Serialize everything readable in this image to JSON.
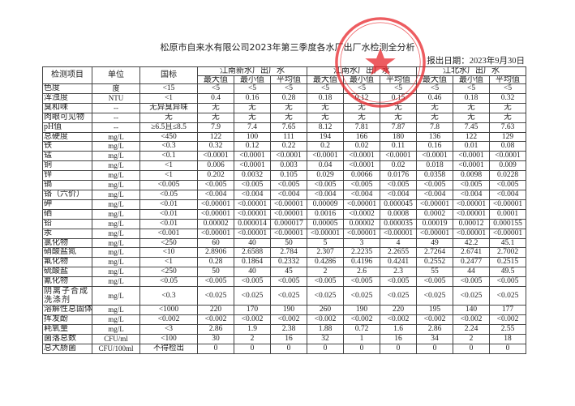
{
  "title": "松原市自来水有限公司2023年第三季度各水厂出厂水检测全分析",
  "report_date": "报出日期：2023年9月30日",
  "stamp": {
    "text": "松原市自来水有限公司",
    "code": "2207031",
    "color": "#e8262b"
  },
  "headers": {
    "item": "检测项目",
    "unit": "单位",
    "standard": "国标",
    "plants": [
      "江南新水厂出厂水",
      "江南水厂出厂水",
      "江北水厂出厂水"
    ],
    "stats": [
      "最大值",
      "最小值",
      "平均值"
    ]
  },
  "rows": [
    {
      "item": "色度",
      "unit": "度",
      "std": "<15",
      "v": [
        "<5",
        "<5",
        "<5",
        "<5",
        "<5",
        "<5",
        "<5",
        "<5",
        "<5"
      ]
    },
    {
      "item": "浑浊度",
      "unit": "NTU",
      "std": "<1",
      "v": [
        "0.4",
        "0.16",
        "0.28",
        "0.18",
        "0.12",
        "0.15",
        "0.46",
        "0.18",
        "0.32"
      ]
    },
    {
      "item": "臭和味",
      "unit": "--",
      "std": "无异臭异味",
      "v": [
        "无",
        "无",
        "无",
        "无",
        "无",
        "无",
        "无",
        "无",
        "无"
      ]
    },
    {
      "item": "肉眼可见物",
      "unit": "--",
      "std": "无",
      "v": [
        "无",
        "无",
        "无",
        "无",
        "无",
        "无",
        "无",
        "无",
        "无"
      ]
    },
    {
      "item": "pH值",
      "unit": "--",
      "std": "≥6.5且≤8.5",
      "v": [
        "7.9",
        "7.4",
        "7.65",
        "8.12",
        "7.81",
        "7.87",
        "7.8",
        "7.45",
        "7.63"
      ]
    },
    {
      "item": "总硬度",
      "unit": "mg/L",
      "std": "<450",
      "v": [
        "122",
        "100",
        "111",
        "194",
        "166",
        "180",
        "136",
        "122",
        "129"
      ]
    },
    {
      "item": "铁",
      "unit": "mg/L",
      "std": "<0.3",
      "v": [
        "0.32",
        "0.12",
        "0.22",
        "0.2",
        "0.02",
        "0.11",
        "0.16",
        "0.01",
        "0.08"
      ]
    },
    {
      "item": "锰",
      "unit": "mg/L",
      "std": "<0.1",
      "v": [
        "<0.0001",
        "<0.0001",
        "<0.0001",
        "<0.0001",
        "<0.0001",
        "<0.0001",
        "<0.0001",
        "<0.0001",
        "<0.0001"
      ]
    },
    {
      "item": "铜",
      "unit": "mg/L",
      "std": "<1",
      "v": [
        "0.006",
        "<0.0001",
        "0.003",
        "0.04",
        "<0.0001",
        "0.02",
        "0.018",
        "<0.0001",
        "0.009"
      ]
    },
    {
      "item": "锌",
      "unit": "mg/L",
      "std": "<1",
      "v": [
        "0.202",
        "0.0032",
        "0.105",
        "0.029",
        "0.0066",
        "0.0176",
        "0.0358",
        "0.0098",
        "0.0228"
      ]
    },
    {
      "item": "镉",
      "unit": "mg/L",
      "std": "<0.005",
      "v": [
        "<0.005",
        "<0.005",
        "<0.005",
        "<0.005",
        "<0.005",
        "<0.005",
        "<0.005",
        "<0.005",
        "<0.005"
      ]
    },
    {
      "item": "铬（六价）",
      "unit": "mg/L",
      "std": "<0.05",
      "v": [
        "<0.004",
        "<0.004",
        "<0.004",
        "<0.004",
        "<0.004",
        "<0.004",
        "<0.004",
        "<0.004",
        "<0.004"
      ]
    },
    {
      "item": "砷",
      "unit": "mg/L",
      "std": "<0.01",
      "v": [
        "<0.00001",
        "<0.00001",
        "<0.00001",
        "0.00009",
        "<0.00001",
        "0.000045",
        "<0.00001",
        "<0.00001",
        "<0.00001"
      ]
    },
    {
      "item": "硒",
      "unit": "mg/L",
      "std": "<0.01",
      "v": [
        "<0.00001",
        "<0.00001",
        "<0.00001",
        "0.0016",
        "<0.0002",
        "0.0008",
        "0.0002",
        "<0.00001",
        "0.0001"
      ]
    },
    {
      "item": "铅",
      "unit": "mg/L",
      "std": "<0.01",
      "v": [
        "0.00002",
        "0.000014",
        "0.000017",
        "0.00005",
        "0.00002",
        "0.000035",
        "0.00019",
        "0.00012",
        "0.000155"
      ]
    },
    {
      "item": "汞",
      "unit": "mg/L",
      "std": "<0.001",
      "v": [
        "<0.00001",
        "<0.00001",
        "<0.00001",
        "<0.00001",
        "<0.00001",
        "<0.00001",
        "<0.00001",
        "<0.00001",
        "<0.00001"
      ]
    },
    {
      "item": "氯化物",
      "unit": "mg/L",
      "std": "<250",
      "v": [
        "60",
        "40",
        "50",
        "5",
        "3",
        "4",
        "49",
        "42.2",
        "45.1"
      ]
    },
    {
      "item": "硝酸盐氮",
      "unit": "mg/L",
      "std": "<10",
      "v": [
        "2.8906",
        "2.6588",
        "2.784",
        "2.307",
        "2.2235",
        "2.2655",
        "2.7264",
        "2.6741",
        "2.7002"
      ]
    },
    {
      "item": "氟化物",
      "unit": "mg/L",
      "std": "<1",
      "v": [
        "0.28",
        "0.1864",
        "0.2332",
        "0.4286",
        "0.4196",
        "0.4241",
        "0.2552",
        "0.2477",
        "0.2515"
      ]
    },
    {
      "item": "硫酸盐",
      "unit": "mg/L",
      "std": "<250",
      "v": [
        "50",
        "40",
        "45",
        "2",
        "2.6",
        "2.3",
        "55",
        "44",
        "49.5"
      ]
    },
    {
      "item": "氰化物",
      "unit": "mg/L",
      "std": "<0.05",
      "v": [
        "<0.005",
        "<0.005",
        "<0.005",
        "<0.005",
        "<0.005",
        "<0.005",
        "<0.005",
        "<0.005",
        "<0.005"
      ]
    },
    {
      "item": "阴离子合成洗涤剂",
      "unit": "mg/L",
      "std": "<0.3",
      "v": [
        "<0.025",
        "<0.025",
        "<0.025",
        "<0.025",
        "<0.025",
        "<0.025",
        "<0.025",
        "<0.025",
        "<0.025"
      ],
      "tall": true
    },
    {
      "item": "溶解性总固体",
      "unit": "mg/L",
      "std": "<1000",
      "v": [
        "220",
        "170",
        "190",
        "260",
        "190",
        "220",
        "195",
        "140",
        "177"
      ]
    },
    {
      "item": "挥发酚",
      "unit": "mg/L",
      "std": "<0.002",
      "v": [
        "<0.002",
        "<0.002",
        "<0.002",
        "<0.002",
        "<0.002",
        "<0.002",
        "<0.002",
        "<0.002",
        "<0.002"
      ]
    },
    {
      "item": "耗氧量",
      "unit": "mg/L",
      "std": "<3",
      "v": [
        "2.86",
        "1.9",
        "2.38",
        "1.88",
        "0.72",
        "1.6",
        "2.86",
        "2.24",
        "2.55"
      ]
    },
    {
      "item": "菌落总数",
      "unit": "CFU/ml",
      "std": "<100",
      "v": [
        "30",
        "2",
        "16",
        "32",
        "1",
        "16",
        "34",
        "2",
        "18"
      ]
    },
    {
      "item": "总大肠菌",
      "unit": "CFU/100ml",
      "std": "不得检出",
      "v": [
        "0",
        "0",
        "0",
        "0",
        "0",
        "0",
        "0",
        "0",
        "0"
      ]
    }
  ]
}
